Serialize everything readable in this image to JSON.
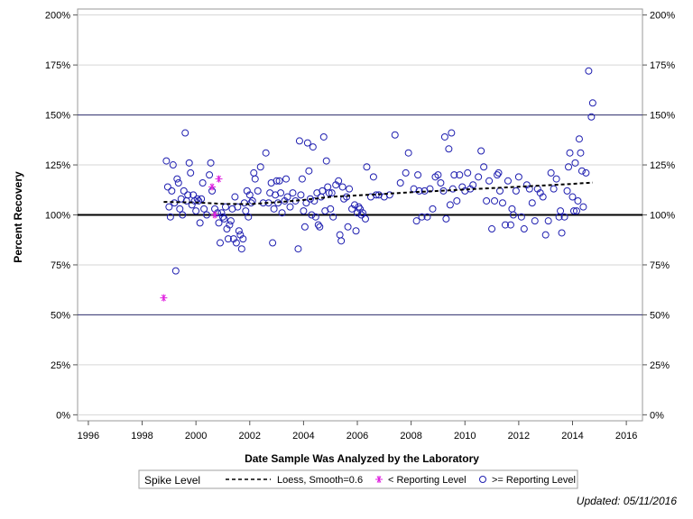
{
  "chart_data": {
    "type": "scatter",
    "xlabel": "Date Sample Was Analyzed by the Laboratory",
    "ylabel": "Percent Recovery",
    "xlim": [
      1995.6,
      2016.6
    ],
    "ylim": [
      -3,
      203
    ],
    "x_ticks": [
      1996,
      1998,
      2000,
      2002,
      2004,
      2006,
      2008,
      2010,
      2012,
      2014,
      2016
    ],
    "x_tick_labels": [
      "1996",
      "1998",
      "2000",
      "2002",
      "2004",
      "2006",
      "2008",
      "2010",
      "2012",
      "2014",
      "2016"
    ],
    "y_ticks": [
      0,
      25,
      50,
      75,
      100,
      125,
      150,
      175,
      200
    ],
    "y_tick_labels": [
      "0%",
      "25%",
      "50%",
      "75%",
      "100%",
      "125%",
      "150%",
      "175%",
      "200%"
    ],
    "reference_lines": [
      {
        "y": 100,
        "style": "heavy"
      },
      {
        "y": 50,
        "style": "thin"
      },
      {
        "y": 150,
        "style": "thin"
      }
    ],
    "legend": {
      "title": "Spike Level",
      "placement": "bottom",
      "entries": [
        {
          "label": "Loess, Smooth=0.6",
          "marker": "dashed-line"
        },
        {
          "label": "< Reporting Level",
          "marker": "star"
        },
        {
          "label": ">= Reporting Level",
          "marker": "circle"
        }
      ]
    },
    "colors": {
      "circle": "#1f1fb0",
      "star": "#e020e0",
      "loess": "#000000"
    },
    "series": [
      {
        "name": ">= Reporting Level",
        "marker": "circle",
        "points": [
          [
            1998.9,
            127
          ],
          [
            1998.95,
            114
          ],
          [
            1999.0,
            104
          ],
          [
            1999.05,
            99
          ],
          [
            1999.1,
            112
          ],
          [
            1999.15,
            125
          ],
          [
            1999.2,
            106
          ],
          [
            1999.25,
            72
          ],
          [
            1999.3,
            118
          ],
          [
            1999.35,
            116
          ],
          [
            1999.4,
            103
          ],
          [
            1999.45,
            108
          ],
          [
            1999.5,
            100
          ],
          [
            1999.55,
            112
          ],
          [
            1999.6,
            141
          ],
          [
            1999.65,
            107
          ],
          [
            1999.7,
            110
          ],
          [
            1999.75,
            126
          ],
          [
            1999.8,
            121
          ],
          [
            1999.85,
            105
          ],
          [
            1999.9,
            110
          ],
          [
            1999.95,
            107
          ],
          [
            2000.0,
            102
          ],
          [
            2000.05,
            108
          ],
          [
            2000.1,
            107
          ],
          [
            2000.15,
            96
          ],
          [
            2000.2,
            108
          ],
          [
            2000.25,
            116
          ],
          [
            2000.3,
            103
          ],
          [
            2000.4,
            100
          ],
          [
            2000.5,
            120
          ],
          [
            2000.55,
            126
          ],
          [
            2000.6,
            112
          ],
          [
            2000.7,
            103
          ],
          [
            2000.8,
            101
          ],
          [
            2000.85,
            96
          ],
          [
            2000.9,
            86
          ],
          [
            2000.95,
            101
          ],
          [
            2001.0,
            99
          ],
          [
            2001.05,
            98
          ],
          [
            2001.1,
            104
          ],
          [
            2001.15,
            93
          ],
          [
            2001.2,
            88
          ],
          [
            2001.25,
            95
          ],
          [
            2001.3,
            97
          ],
          [
            2001.35,
            103
          ],
          [
            2001.4,
            88
          ],
          [
            2001.45,
            109
          ],
          [
            2001.5,
            86
          ],
          [
            2001.55,
            104
          ],
          [
            2001.6,
            92
          ],
          [
            2001.65,
            90
          ],
          [
            2001.7,
            83
          ],
          [
            2001.75,
            88
          ],
          [
            2001.8,
            106
          ],
          [
            2001.85,
            102
          ],
          [
            2001.9,
            112
          ],
          [
            2001.95,
            99
          ],
          [
            2002.0,
            110
          ],
          [
            2002.05,
            106
          ],
          [
            2002.1,
            107
          ],
          [
            2002.15,
            121
          ],
          [
            2002.2,
            118
          ],
          [
            2002.3,
            112
          ],
          [
            2002.4,
            124
          ],
          [
            2002.5,
            106
          ],
          [
            2002.6,
            131
          ],
          [
            2002.7,
            106
          ],
          [
            2002.75,
            111
          ],
          [
            2002.8,
            116
          ],
          [
            2002.85,
            86
          ],
          [
            2002.9,
            103
          ],
          [
            2002.95,
            110
          ],
          [
            2003.0,
            117
          ],
          [
            2003.05,
            106
          ],
          [
            2003.1,
            117
          ],
          [
            2003.15,
            111
          ],
          [
            2003.2,
            101
          ],
          [
            2003.3,
            107
          ],
          [
            2003.35,
            118
          ],
          [
            2003.4,
            109
          ],
          [
            2003.5,
            104
          ],
          [
            2003.6,
            111
          ],
          [
            2003.7,
            107
          ],
          [
            2003.8,
            83
          ],
          [
            2003.85,
            137
          ],
          [
            2003.9,
            110
          ],
          [
            2003.95,
            118
          ],
          [
            2004.0,
            102
          ],
          [
            2004.05,
            94
          ],
          [
            2004.1,
            106
          ],
          [
            2004.15,
            136
          ],
          [
            2004.2,
            122
          ],
          [
            2004.25,
            108
          ],
          [
            2004.3,
            100
          ],
          [
            2004.35,
            134
          ],
          [
            2004.4,
            107
          ],
          [
            2004.45,
            99
          ],
          [
            2004.5,
            111
          ],
          [
            2004.55,
            95
          ],
          [
            2004.6,
            94
          ],
          [
            2004.65,
            109
          ],
          [
            2004.7,
            112
          ],
          [
            2004.75,
            139
          ],
          [
            2004.8,
            102
          ],
          [
            2004.85,
            127
          ],
          [
            2004.9,
            114
          ],
          [
            2004.95,
            111
          ],
          [
            2005.0,
            103
          ],
          [
            2005.05,
            111
          ],
          [
            2005.1,
            99
          ],
          [
            2005.2,
            115
          ],
          [
            2005.3,
            117
          ],
          [
            2005.35,
            90
          ],
          [
            2005.4,
            87
          ],
          [
            2005.45,
            114
          ],
          [
            2005.5,
            108
          ],
          [
            2005.6,
            109
          ],
          [
            2005.65,
            94
          ],
          [
            2005.7,
            113
          ],
          [
            2005.8,
            103
          ],
          [
            2005.9,
            105
          ],
          [
            2005.95,
            92
          ],
          [
            2006.0,
            101
          ],
          [
            2006.05,
            104
          ],
          [
            2006.1,
            103
          ],
          [
            2006.15,
            100
          ],
          [
            2006.2,
            101
          ],
          [
            2006.3,
            98
          ],
          [
            2006.35,
            124
          ],
          [
            2006.5,
            109
          ],
          [
            2006.6,
            119
          ],
          [
            2006.7,
            110
          ],
          [
            2006.8,
            110
          ],
          [
            2007.0,
            109
          ],
          [
            2007.2,
            110
          ],
          [
            2007.4,
            140
          ],
          [
            2007.6,
            116
          ],
          [
            2007.8,
            121
          ],
          [
            2007.9,
            131
          ],
          [
            2008.1,
            113
          ],
          [
            2008.2,
            97
          ],
          [
            2008.25,
            120
          ],
          [
            2008.3,
            112
          ],
          [
            2008.4,
            99
          ],
          [
            2008.5,
            112
          ],
          [
            2008.6,
            99
          ],
          [
            2008.7,
            113
          ],
          [
            2008.8,
            103
          ],
          [
            2008.9,
            119
          ],
          [
            2009.0,
            120
          ],
          [
            2009.1,
            116
          ],
          [
            2009.2,
            112
          ],
          [
            2009.25,
            139
          ],
          [
            2009.3,
            98
          ],
          [
            2009.4,
            133
          ],
          [
            2009.45,
            105
          ],
          [
            2009.5,
            141
          ],
          [
            2009.55,
            113
          ],
          [
            2009.6,
            120
          ],
          [
            2009.7,
            107
          ],
          [
            2009.8,
            120
          ],
          [
            2009.9,
            114
          ],
          [
            2010.0,
            112
          ],
          [
            2010.1,
            121
          ],
          [
            2010.2,
            113
          ],
          [
            2010.3,
            115
          ],
          [
            2010.5,
            119
          ],
          [
            2010.6,
            132
          ],
          [
            2010.7,
            124
          ],
          [
            2010.8,
            107
          ],
          [
            2010.9,
            117
          ],
          [
            2011.0,
            93
          ],
          [
            2011.1,
            107
          ],
          [
            2011.2,
            120
          ],
          [
            2011.25,
            121
          ],
          [
            2011.3,
            112
          ],
          [
            2011.4,
            106
          ],
          [
            2011.5,
            95
          ],
          [
            2011.6,
            117
          ],
          [
            2011.7,
            95
          ],
          [
            2011.75,
            103
          ],
          [
            2011.8,
            100
          ],
          [
            2011.9,
            112
          ],
          [
            2012.0,
            119
          ],
          [
            2012.1,
            99
          ],
          [
            2012.2,
            93
          ],
          [
            2012.3,
            115
          ],
          [
            2012.4,
            113
          ],
          [
            2012.5,
            106
          ],
          [
            2012.6,
            97
          ],
          [
            2012.7,
            113
          ],
          [
            2012.8,
            111
          ],
          [
            2012.9,
            109
          ],
          [
            2013.0,
            90
          ],
          [
            2013.1,
            97
          ],
          [
            2013.2,
            121
          ],
          [
            2013.3,
            113
          ],
          [
            2013.4,
            118
          ],
          [
            2013.5,
            99
          ],
          [
            2013.55,
            102
          ],
          [
            2013.6,
            91
          ],
          [
            2013.7,
            99
          ],
          [
            2013.8,
            112
          ],
          [
            2013.85,
            124
          ],
          [
            2013.9,
            131
          ],
          [
            2014.0,
            109
          ],
          [
            2014.05,
            102
          ],
          [
            2014.1,
            126
          ],
          [
            2014.15,
            102
          ],
          [
            2014.2,
            107
          ],
          [
            2014.25,
            138
          ],
          [
            2014.3,
            131
          ],
          [
            2014.35,
            122
          ],
          [
            2014.4,
            104
          ],
          [
            2014.5,
            121
          ],
          [
            2014.6,
            172
          ],
          [
            2014.7,
            149
          ],
          [
            2014.75,
            156
          ]
        ]
      },
      {
        "name": "< Reporting Level",
        "marker": "star",
        "points": [
          [
            1998.8,
            58.5
          ],
          [
            2000.6,
            114
          ],
          [
            2000.7,
            100
          ],
          [
            2000.85,
            118
          ]
        ]
      },
      {
        "name": "Loess, Smooth=0.6",
        "marker": "dashed-line",
        "points": [
          [
            1998.8,
            106.5
          ],
          [
            2000.0,
            106.2
          ],
          [
            2001.0,
            105.5
          ],
          [
            2002.0,
            105.4
          ],
          [
            2003.0,
            106.3
          ],
          [
            2004.0,
            107.5
          ],
          [
            2005.0,
            109.0
          ],
          [
            2006.0,
            109.8
          ],
          [
            2007.0,
            110.5
          ],
          [
            2008.0,
            111.3
          ],
          [
            2009.0,
            112.0
          ],
          [
            2010.0,
            112.7
          ],
          [
            2011.0,
            113.4
          ],
          [
            2012.0,
            114.1
          ],
          [
            2013.0,
            114.8
          ],
          [
            2014.0,
            115.5
          ],
          [
            2014.75,
            116.2
          ]
        ]
      }
    ]
  },
  "footnote": "Updated: 05/11/2016"
}
